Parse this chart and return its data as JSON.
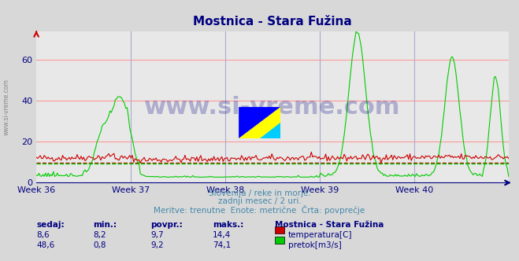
{
  "title": "Mostnica - Stara Fužina",
  "title_color": "#000080",
  "bg_color": "#d8d8d8",
  "plot_bg_color": "#e8e8e8",
  "grid_color_h": "#ff9999",
  "grid_color_v": "#aaaacc",
  "xlabel_weeks": [
    "Week 36",
    "Week 37",
    "Week 38",
    "Week 39",
    "Week 40"
  ],
  "ylim": [
    0,
    74
  ],
  "yticks": [
    0,
    20,
    40,
    60
  ],
  "subtitle_lines": [
    "Slovenija / reke in morje.",
    "zadnji mesec / 2 uri.",
    "Meritve: trenutne  Enote: metrične  Črta: povprečje"
  ],
  "subtitle_color": "#4488aa",
  "table_header": [
    "sedaj:",
    "min.:",
    "povpr.:",
    "maks.:",
    "Mostnica - Stara Fužina"
  ],
  "table_row1": [
    "8,6",
    "8,2",
    "9,7",
    "14,4",
    "temperatura[C]"
  ],
  "table_row2": [
    "48,6",
    "0,8",
    "9,2",
    "74,1",
    "pretok[m3/s]"
  ],
  "table_color": "#000080",
  "legend_color1": "#cc0000",
  "legend_color2": "#00cc00",
  "watermark": "www.si-vreme.com",
  "watermark_color": "#000080",
  "axis_color": "#000080",
  "temp_avg": 9.7,
  "flow_avg": 9.2,
  "n_points": 360
}
